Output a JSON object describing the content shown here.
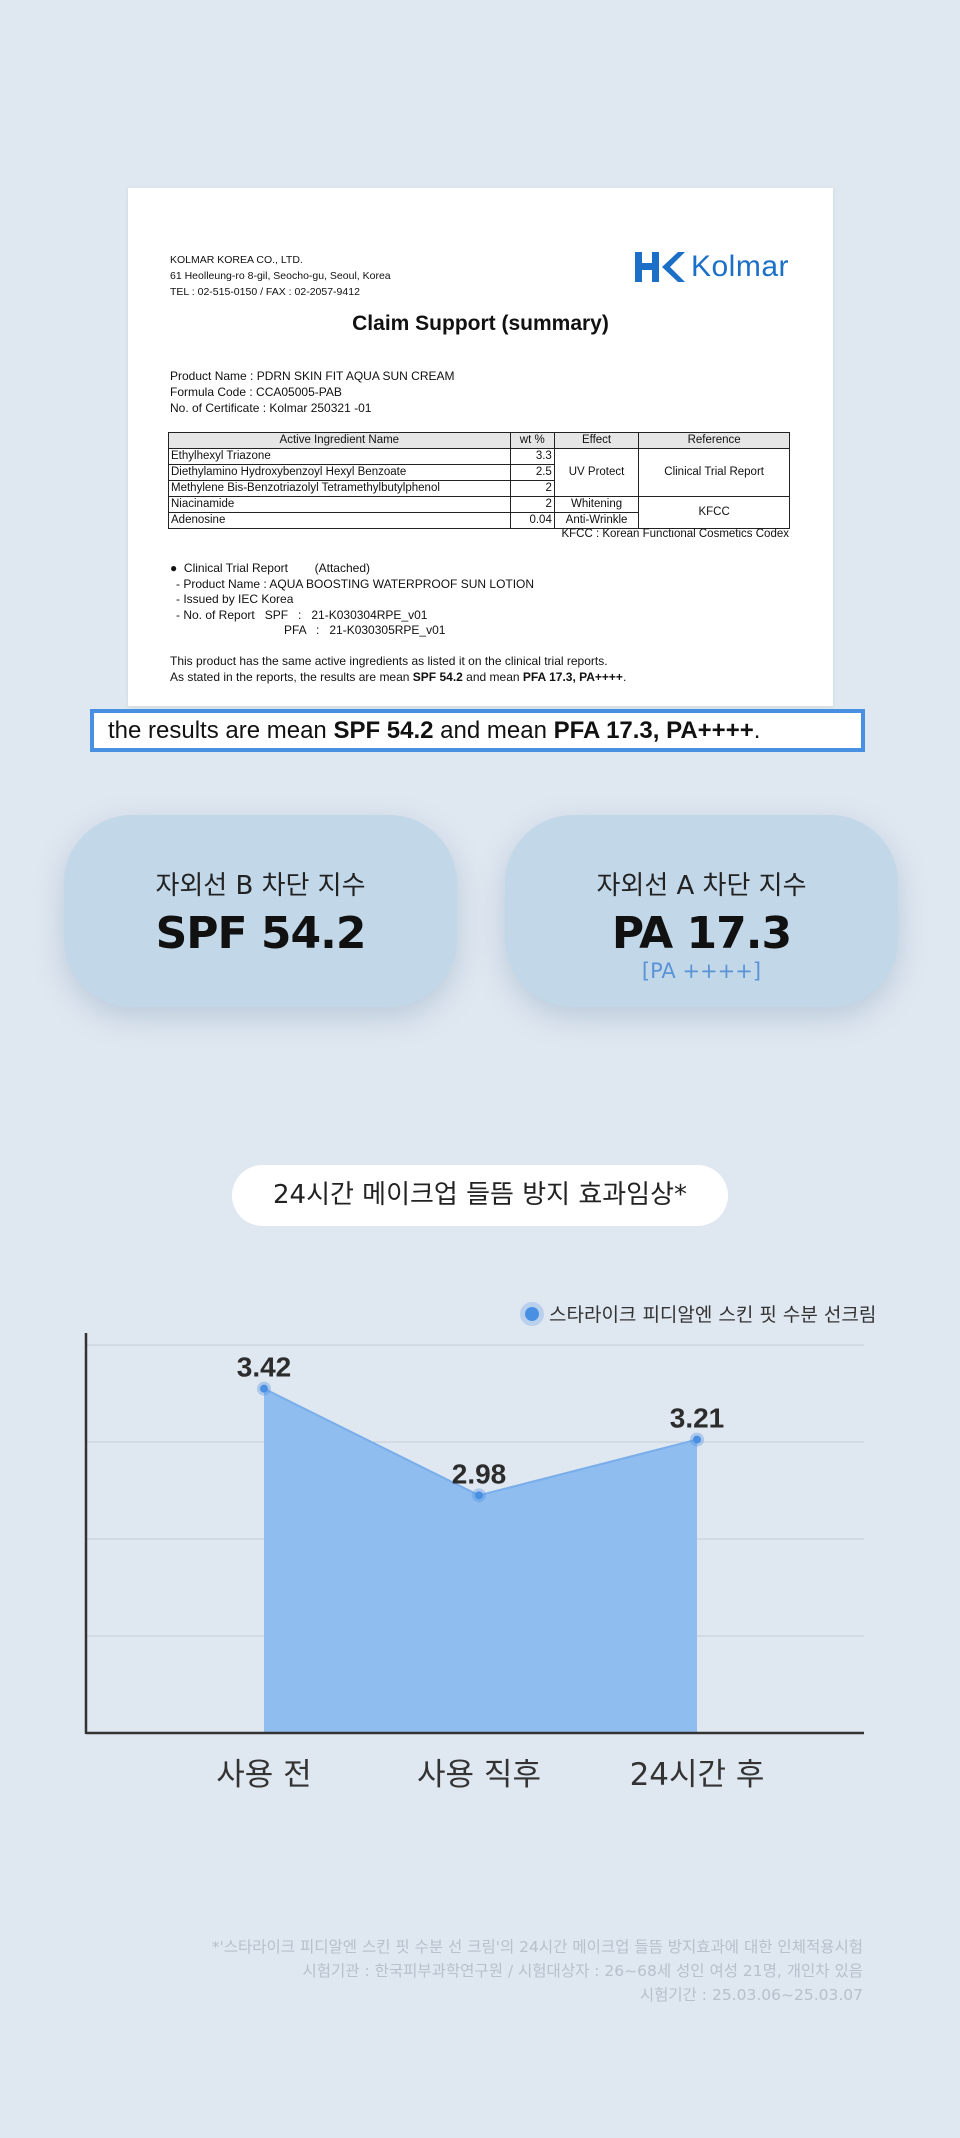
{
  "document": {
    "company": "KOLMAR KOREA CO., LTD.",
    "address": "61 Heolleung-ro 8-gil, Seocho-gu, Seoul, Korea",
    "contact": "TEL : 02-515-0150 / FAX : 02-2057-9412",
    "logo_text": "Kolmar",
    "title": "Claim Support (summary)",
    "product_name": "Product Name : PDRN SKIN FIT AQUA SUN CREAM",
    "formula_code": "Formula Code : CCA05005-PAB",
    "certificate_no": "No. of Certificate :  Kolmar   250321 -01",
    "table": {
      "headers": [
        "Active Ingredient Name",
        "wt %",
        "Effect",
        "Reference"
      ],
      "rows": [
        {
          "name": "Ethylhexyl Triazone",
          "wt": "3.3"
        },
        {
          "name": "Diethylamino Hydroxybenzoyl Hexyl Benzoate",
          "wt": "2.5"
        },
        {
          "name": "Methylene Bis-Benzotriazolyl Tetramethylbutylphenol",
          "wt": "2"
        },
        {
          "name": "Niacinamide",
          "wt": "2"
        },
        {
          "name": "Adenosine",
          "wt": "0.04"
        }
      ],
      "effect_uv": "UV Protect",
      "effect_whitening": "Whitening",
      "effect_antiwrinkle": "Anti-Wrinkle",
      "ref_clinical": "Clinical Trial Report",
      "ref_kfcc": "KFCC"
    },
    "kfcc_note": "KFCC : Korean Functional Cosmetics Codex",
    "trial": {
      "heading": "Clinical Trial Report",
      "attached": "(Attached)",
      "product": "- Product Name : AQUA BOOSTING WATERPROOF SUN LOTION",
      "issued": "- Issued by IEC Korea",
      "report_spf": "- No. of Report   SPF   :   21-K030304RPE_v01",
      "report_pfa": "PFA   :   21-K030305RPE_v01"
    },
    "conclusion_1": "This product has the same active ingredients as listed it on the clinical trial reports.",
    "conclusion_2_pre": "As stated in the reports, the results are mean ",
    "conclusion_2_spf": "SPF 54.2",
    "conclusion_2_mid": " and mean ",
    "conclusion_2_pfa": "PFA 17.3, PA++++",
    "conclusion_2_end": "."
  },
  "highlight": {
    "pre": "the results are mean ",
    "spf": "SPF 54.2",
    "mid": " and mean ",
    "pfa": "PFA 17.3, PA++++",
    "end": "."
  },
  "stats": {
    "uvb_label": "자외선 B 차단 지수",
    "uvb_value": "SPF 54.2",
    "uva_label": "자외선 A 차단 지수",
    "uva_value": "PA 17.3",
    "uva_sub": "[PA ++++]"
  },
  "section_title": "24시간 메이크업 들뜸 방지 효과임상*",
  "legend_label": "스타라이크 피디알엔 스킨 핏 수분 선크림",
  "chart_data": {
    "type": "area",
    "categories": [
      "사용 전",
      "사용 직후",
      "24시간 후"
    ],
    "series": [
      {
        "name": "스타라이크 피디알엔 스킨 핏 수분 선크림",
        "values": [
          3.42,
          2.98,
          3.21
        ]
      }
    ],
    "value_labels": [
      "3.42",
      "2.98",
      "3.21"
    ],
    "ylim": [
      2.0,
      3.6
    ],
    "grid": true,
    "legend": "top-right",
    "colors": {
      "area": "#8fbdf0",
      "line": "#79aeea",
      "point": "#4a90e2"
    }
  },
  "footnote": {
    "line1": "*'스타라이크 피디알엔 스킨 핏 수분 선 크림'의 24시간 메이크업 들뜸 방지효과에 대한 인체적용시험",
    "line2": "시험기관 : 한국피부과학연구원 / 시험대상자 : 26~68세 성인 여성 21명, 개인차 있음",
    "line3": "시험기간 : 25.03.06~25.03.07"
  }
}
